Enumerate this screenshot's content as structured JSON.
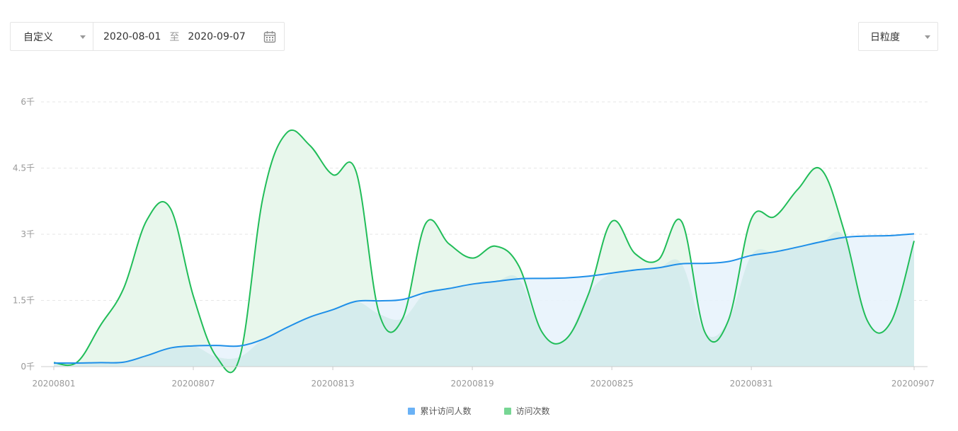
{
  "toolbar": {
    "range_select": "自定义",
    "date_from": "2020-08-01",
    "date_sep": "至",
    "date_to": "2020-09-07",
    "granularity_select": "日粒度"
  },
  "chart_data": {
    "type": "area",
    "categories": [
      "20200801",
      "20200802",
      "20200803",
      "20200804",
      "20200805",
      "20200806",
      "20200807",
      "20200808",
      "20200809",
      "20200810",
      "20200811",
      "20200812",
      "20200813",
      "20200814",
      "20200815",
      "20200816",
      "20200817",
      "20200818",
      "20200819",
      "20200820",
      "20200821",
      "20200822",
      "20200823",
      "20200824",
      "20200825",
      "20200826",
      "20200827",
      "20200828",
      "20200829",
      "20200830",
      "20200831",
      "20200901",
      "20200902",
      "20200903",
      "20200904",
      "20200905",
      "20200906",
      "20200907"
    ],
    "x_tick_labels": [
      "20200801",
      "20200807",
      "20200813",
      "20200819",
      "20200825",
      "20200831",
      "20200907"
    ],
    "y_ticks": [
      {
        "value": 0,
        "label": "0千"
      },
      {
        "value": 1500,
        "label": "1.5千"
      },
      {
        "value": 3000,
        "label": "3千"
      },
      {
        "value": 4500,
        "label": "4.5千"
      },
      {
        "value": 6000,
        "label": "6千"
      }
    ],
    "ylim": [
      0,
      6000
    ],
    "grid": true,
    "legend_position": "bottom",
    "series": [
      {
        "name": "累计访问人数",
        "color": "#1e8fe8",
        "fill": "#e6f2fc",
        "legend_color": "#6ab2f6",
        "values": [
          80,
          80,
          90,
          100,
          250,
          420,
          470,
          480,
          470,
          620,
          880,
          1120,
          1290,
          1480,
          1490,
          1520,
          1680,
          1770,
          1870,
          1930,
          1990,
          2000,
          2010,
          2050,
          2120,
          2190,
          2240,
          2330,
          2340,
          2380,
          2520,
          2600,
          2710,
          2830,
          2930,
          2960,
          2970,
          3010
        ]
      },
      {
        "name": "访问次数",
        "color": "#21bd59",
        "fill": "#e8f7ec",
        "legend_color": "#77d694",
        "values": [
          90,
          100,
          930,
          1770,
          3320,
          3600,
          1600,
          220,
          220,
          3850,
          5290,
          5020,
          4350,
          4420,
          1190,
          1090,
          3250,
          2780,
          2460,
          2730,
          2280,
          780,
          610,
          1650,
          3290,
          2560,
          2420,
          3290,
          780,
          1030,
          3350,
          3400,
          4020,
          4470,
          3060,
          1030,
          1010,
          2850
        ]
      }
    ]
  }
}
